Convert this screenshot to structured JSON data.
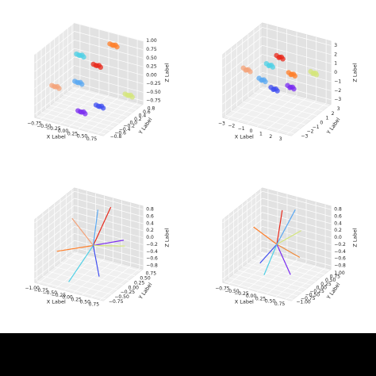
{
  "chart_data": [
    {
      "type": "scatter3d",
      "xlabel": "X Label",
      "ylabel": "Y Label",
      "zlabel": "Z Label",
      "xlim": [
        -0.9,
        0.9
      ],
      "ylim": [
        -0.9,
        0.9
      ],
      "zlim": [
        -0.85,
        1.0
      ],
      "xticks": [
        {
          "value": -0.75,
          "label": "−0.75"
        },
        {
          "value": -0.5,
          "label": "−0.50"
        },
        {
          "value": -0.25,
          "label": "−0.25"
        },
        {
          "value": 0,
          "label": "0.00"
        },
        0.25,
        {
          "value": 0.5,
          "label": "0.50"
        },
        0.75
      ],
      "yticks": [
        {
          "value": -0.8,
          "label": "−0.8"
        },
        {
          "value": -0.6,
          "label": "−0.6"
        },
        {
          "value": -0.4,
          "label": "−0.4"
        },
        {
          "value": -0.2,
          "label": "−0.2"
        },
        {
          "value": 0,
          "label": "0.0"
        },
        0.2,
        0.4,
        0.6,
        0.8
      ],
      "zticks": [
        {
          "value": -0.75,
          "label": "−0.75"
        },
        {
          "value": -0.5,
          "label": "−0.50"
        },
        {
          "value": -0.25,
          "label": "−0.25"
        },
        {
          "value": 0,
          "label": "0.00"
        },
        0.25,
        {
          "value": 0.5,
          "label": "0.50"
        },
        0.75,
        {
          "value": 1,
          "label": "1.00"
        }
      ],
      "series": [
        {
          "color": "#f4a37a",
          "x": [
            -0.7,
            -0.62,
            -0.77,
            -0.66,
            -0.75
          ],
          "y": [
            -0.3,
            -0.35,
            -0.24,
            -0.21,
            -0.38
          ],
          "z": [
            -0.2,
            -0.14,
            -0.24,
            -0.28,
            -0.13
          ]
        },
        {
          "color": "#4fd0e6",
          "x": [
            -0.4,
            -0.32,
            -0.47,
            -0.36,
            -0.45
          ],
          "y": [
            0.3,
            0.25,
            0.36,
            0.39,
            0.22
          ],
          "z": [
            0.5,
            0.56,
            0.46,
            0.42,
            0.57
          ]
        },
        {
          "color": "#5aa8f2",
          "x": [
            -0.1,
            -0.02,
            -0.17,
            -0.06,
            -0.15
          ],
          "y": [
            -0.3,
            -0.35,
            -0.24,
            -0.21,
            -0.38
          ],
          "z": [
            0.1,
            0.16,
            0.06,
            0.02,
            0.17
          ]
        },
        {
          "color": "#e8291c",
          "x": [
            0.1,
            0.18,
            0.03,
            0.14,
            0.05
          ],
          "y": [
            0.2,
            0.15,
            0.26,
            0.29,
            0.12
          ],
          "z": [
            0.4,
            0.46,
            0.36,
            0.32,
            0.47
          ]
        },
        {
          "color": "#ff7f2a",
          "x": [
            0.3,
            0.38,
            0.23,
            0.34,
            0.25
          ],
          "y": [
            0.6,
            0.55,
            0.66,
            0.69,
            0.52
          ],
          "z": [
            0.85,
            0.91,
            0.81,
            0.77,
            0.92
          ]
        },
        {
          "color": "#7a2cf0",
          "x": [
            0.1,
            0.18,
            0.03,
            0.14,
            0.05
          ],
          "y": [
            -0.5,
            -0.55,
            -0.44,
            -0.41,
            -0.58
          ],
          "z": [
            -0.6,
            -0.54,
            -0.64,
            -0.68,
            -0.53
          ]
        },
        {
          "color": "#3f4df0",
          "x": [
            0.4,
            0.48,
            0.33,
            0.44,
            0.35
          ],
          "y": [
            -0.2,
            -0.25,
            -0.14,
            -0.11,
            -0.28
          ],
          "z": [
            -0.5,
            -0.44,
            -0.54,
            -0.58,
            -0.43
          ]
        },
        {
          "color": "#d4e67a",
          "x": [
            0.7,
            0.78,
            0.63,
            0.74,
            0.65
          ],
          "y": [
            0.6,
            0.55,
            0.66,
            0.69,
            0.52
          ],
          "z": [
            -0.5,
            -0.44,
            -0.54,
            -0.58,
            -0.43
          ]
        }
      ]
    },
    {
      "type": "scatter3d",
      "xlabel": "X Label",
      "ylabel": "Y Label",
      "zlabel": "Z Label",
      "xlim": [
        -3.5,
        3.5
      ],
      "ylim": [
        -3.5,
        3.5
      ],
      "zlim": [
        -3.5,
        3.5
      ],
      "xticks": [
        {
          "value": -3,
          "label": "−3"
        },
        {
          "value": -2,
          "label": "−2"
        },
        {
          "value": -1,
          "label": "−1"
        },
        0,
        1,
        2,
        3
      ],
      "yticks": [
        {
          "value": -3,
          "label": "−3"
        },
        {
          "value": -2,
          "label": "−2"
        },
        {
          "value": -1,
          "label": "−1"
        },
        0,
        1,
        2,
        3
      ],
      "zticks": [
        {
          "value": -3,
          "label": "−3"
        },
        {
          "value": -2,
          "label": "−2"
        },
        {
          "value": -1,
          "label": "−1"
        },
        0,
        1,
        2,
        3
      ],
      "series": [
        {
          "color": "#f4a37a",
          "x": [
            -2.8,
            -2.5,
            -3.0,
            -2.6,
            -2.95
          ],
          "y": [
            -0.5,
            -0.7,
            -0.3,
            -0.2,
            -0.8
          ],
          "z": [
            0.5,
            0.7,
            0.3,
            0.2,
            0.8
          ]
        },
        {
          "color": "#4fd0e6",
          "x": [
            -1.2,
            -0.9,
            -1.4,
            -1.05,
            -1.35
          ],
          "y": [
            0.8,
            0.6,
            1.0,
            1.1,
            0.5
          ],
          "z": [
            0.8,
            1.0,
            0.6,
            0.5,
            1.1
          ]
        },
        {
          "color": "#5aa8f2",
          "x": [
            -0.8,
            -0.5,
            -1.0,
            -0.65,
            -0.95
          ],
          "y": [
            -1.2,
            -1.4,
            -1.0,
            -0.9,
            -1.5
          ],
          "z": [
            0.3,
            0.5,
            0.1,
            0,
            0.6
          ]
        },
        {
          "color": "#e8291c",
          "x": [
            0,
            0.3,
            -0.2,
            0.15,
            -0.15
          ],
          "y": [
            0.5,
            0.3,
            0.7,
            0.8,
            0.2
          ],
          "z": [
            2.2,
            2.4,
            2.0,
            1.9,
            2.5
          ]
        },
        {
          "color": "#ff7f2a",
          "x": [
            1.0,
            1.3,
            0.8,
            1.15,
            0.85
          ],
          "y": [
            0.9,
            0.7,
            1.1,
            1.2,
            0.6
          ],
          "z": [
            0.4,
            0.6,
            0.2,
            0.1,
            0.7
          ]
        },
        {
          "color": "#3f4df0",
          "x": [
            0.3,
            0.6,
            0.1,
            0.45,
            0.15
          ],
          "y": [
            -1.0,
            -1.2,
            -0.8,
            -0.7,
            -1.3
          ],
          "z": [
            -0.5,
            -0.3,
            -0.7,
            -0.8,
            -0.2
          ]
        },
        {
          "color": "#7a2cf0",
          "x": [
            1.3,
            1.6,
            1.1,
            1.45,
            1.15
          ],
          "y": [
            0.2,
            0,
            0.4,
            0.5,
            -0.1
          ],
          "z": [
            -0.6,
            -0.4,
            -0.8,
            -0.9,
            -0.3
          ]
        },
        {
          "color": "#d4e67a",
          "x": [
            2.5,
            2.8,
            2.3,
            2.6,
            2.35
          ],
          "y": [
            2.2,
            2.0,
            2.4,
            2.5,
            1.9
          ],
          "z": [
            0.3,
            0.5,
            0.1,
            0,
            0.6
          ]
        }
      ]
    },
    {
      "type": "line3d",
      "xlabel": "X Label",
      "ylabel": "Y Label",
      "zlabel": "Z Label",
      "xlim": [
        -1.1,
        0.85
      ],
      "ylim": [
        -0.85,
        0.85
      ],
      "zlim": [
        -0.9,
        0.9
      ],
      "xticks": [
        {
          "value": -1,
          "label": "−1.00"
        },
        {
          "value": -0.75,
          "label": "−0.75"
        },
        {
          "value": -0.5,
          "label": "−0.50"
        },
        {
          "value": -0.25,
          "label": "−0.25"
        },
        {
          "value": 0,
          "label": "0.00"
        },
        0.25,
        {
          "value": 0.5,
          "label": "0.50"
        },
        0.75
      ],
      "yticks": [
        {
          "value": -0.75,
          "label": "−0.75"
        },
        {
          "value": -0.5,
          "label": "−0.50"
        },
        {
          "value": -0.25,
          "label": "−0.25"
        },
        {
          "value": 0,
          "label": "0.00"
        },
        0.25,
        {
          "value": 0.5,
          "label": "0.50"
        },
        0.75
      ],
      "zticks": [
        {
          "value": -0.8,
          "label": "−0.8"
        },
        {
          "value": -0.6,
          "label": "−0.6"
        },
        {
          "value": -0.4,
          "label": "−0.4"
        },
        {
          "value": -0.2,
          "label": "−0.2"
        },
        {
          "value": 0,
          "label": "0.0"
        },
        0.2,
        0.4,
        0.6,
        0.8
      ],
      "series": [
        {
          "color": "#e8291c",
          "x": [
            0,
            0.1
          ],
          "y": [
            0,
            0.6
          ],
          "z": [
            0,
            0.8
          ]
        },
        {
          "color": "#ff7f2a",
          "x": [
            0,
            -0.9
          ],
          "y": [
            0,
            -0.2
          ],
          "z": [
            0,
            -0.3
          ]
        },
        {
          "color": "#f4a37a",
          "x": [
            0,
            -0.8
          ],
          "y": [
            0,
            0.3
          ],
          "z": [
            0,
            0.4
          ]
        },
        {
          "color": "#7a2cf0",
          "x": [
            0,
            0.6
          ],
          "y": [
            0,
            0.4
          ],
          "z": [
            0,
            0.1
          ]
        },
        {
          "color": "#4fd0e6",
          "x": [
            0,
            -0.3
          ],
          "y": [
            0,
            -0.6
          ],
          "z": [
            0,
            -0.8
          ]
        },
        {
          "color": "#d4e67a",
          "x": [
            0,
            0.5
          ],
          "y": [
            0,
            0.6
          ],
          "z": [
            0,
            -0.2
          ]
        },
        {
          "color": "#3f4df0",
          "x": [
            0,
            0.3
          ],
          "y": [
            0,
            -0.2
          ],
          "z": [
            0,
            -0.7
          ]
        },
        {
          "color": "#5aa8f2",
          "x": [
            0,
            -0.2
          ],
          "y": [
            0,
            0.5
          ],
          "z": [
            0,
            0.7
          ]
        }
      ]
    },
    {
      "type": "line3d",
      "xlabel": "X Label",
      "ylabel": "Y Label",
      "zlabel": "Z Label",
      "xlim": [
        -0.9,
        0.9
      ],
      "ylim": [
        -1.1,
        1.1
      ],
      "zlim": [
        -0.9,
        0.9
      ],
      "xticks": [
        {
          "value": -0.75,
          "label": "−0.75"
        },
        {
          "value": -0.5,
          "label": "−0.50"
        },
        {
          "value": -0.25,
          "label": "−0.25"
        },
        {
          "value": 0,
          "label": "0.00"
        },
        0.25,
        {
          "value": 0.5,
          "label": "0.50"
        },
        0.75
      ],
      "yticks": [
        {
          "value": -1,
          "label": "−1.00"
        },
        {
          "value": -0.75,
          "label": "−0.75"
        },
        {
          "value": -0.5,
          "label": "−0.50"
        },
        {
          "value": -0.25,
          "label": "−0.25"
        },
        {
          "value": 0,
          "label": "0.00"
        },
        0.25,
        {
          "value": 0.5,
          "label": "0.50"
        },
        0.75,
        {
          "value": 1,
          "label": "1.00"
        }
      ],
      "zticks": [
        {
          "value": -0.8,
          "label": "−0.8"
        },
        {
          "value": -0.6,
          "label": "−0.6"
        },
        {
          "value": -0.4,
          "label": "−0.4"
        },
        {
          "value": -0.2,
          "label": "−0.2"
        },
        {
          "value": 0,
          "label": "0.0"
        },
        0.2,
        0.4,
        0.6,
        0.8
      ],
      "series": [
        {
          "color": "#e8291c",
          "x": [
            0,
            0
          ],
          "y": [
            0,
            0.3
          ],
          "z": [
            0,
            0.85
          ]
        },
        {
          "color": "#ff7f2a",
          "x": [
            0,
            -0.8
          ],
          "y": [
            0,
            0.4
          ],
          "z": [
            0,
            0.1
          ]
        },
        {
          "color": "#f08a3a",
          "x": [
            0,
            0.6
          ],
          "y": [
            0,
            0
          ],
          "z": [
            0,
            -0.2
          ]
        },
        {
          "color": "#7a2cf0",
          "x": [
            0,
            0.5
          ],
          "y": [
            0,
            -0.3
          ],
          "z": [
            0,
            -0.6
          ]
        },
        {
          "color": "#3f4df0",
          "x": [
            0,
            -0.3
          ],
          "y": [
            0,
            -0.3
          ],
          "z": [
            0,
            -0.5
          ]
        },
        {
          "color": "#4fd0e6",
          "x": [
            0,
            -0.1
          ],
          "y": [
            0,
            -0.5
          ],
          "z": [
            0,
            -0.7
          ]
        },
        {
          "color": "#d4e67a",
          "x": [
            0,
            0.4
          ],
          "y": [
            0,
            0.5
          ],
          "z": [
            0,
            0.3
          ]
        },
        {
          "color": "#5aa8f2",
          "x": [
            0,
            0.2
          ],
          "y": [
            0,
            0.6
          ],
          "z": [
            0,
            0.8
          ]
        }
      ]
    }
  ]
}
